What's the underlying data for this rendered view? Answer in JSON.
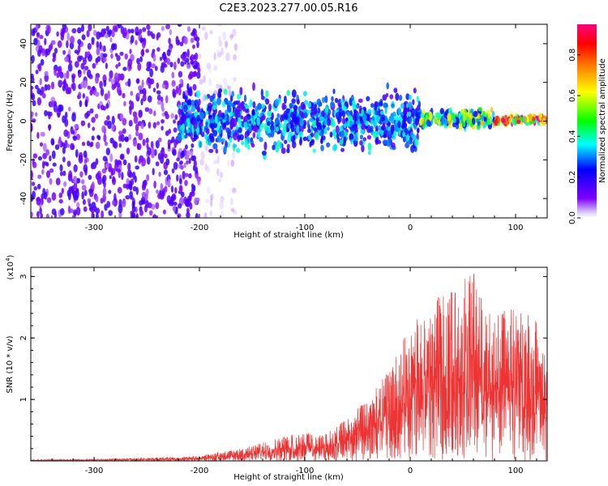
{
  "title": "C2E3.2023.277.00.05.R16",
  "colors": {
    "spectrogram_background": "#ffffff",
    "snr_line": "#ee3333",
    "axis": "#000000"
  },
  "chart_data": [
    {
      "type": "heatmap",
      "title": "C2E3.2023.277.00.05.R16",
      "xlabel": "Height of straight line (km)",
      "ylabel": "Frequency (Hz)",
      "xlim": [
        -360,
        130
      ],
      "ylim": [
        -50,
        50
      ],
      "x_ticks": [
        -300,
        -200,
        -100,
        0,
        100
      ],
      "x_tick_labels": [
        "-300",
        "-200",
        "-100",
        "0",
        "100"
      ],
      "y_ticks": [
        -40,
        -20,
        0,
        20,
        40
      ],
      "y_tick_labels": [
        "-40",
        "-20",
        "0",
        "20",
        "40"
      ],
      "colorbar": {
        "label": "Normalized spectral amplitude",
        "range": [
          0,
          0.95
        ],
        "ticks": [
          0.0,
          0.2,
          0.4,
          0.6,
          0.8
        ],
        "tick_labels": [
          "0.0",
          "0.2",
          "0.4",
          "0.6",
          "0.8"
        ],
        "colormap": [
          "#ffffff",
          "#8000ff",
          "#0000ff",
          "#00ffff",
          "#00ff00",
          "#ffff00",
          "#ff8000",
          "#ff0000",
          "#ff0080"
        ]
      },
      "regions": [
        {
          "x_range": [
            -360,
            -200
          ],
          "freq_spread": [
            -50,
            50
          ],
          "amplitude": 0.12
        },
        {
          "x_range": [
            -200,
            -165
          ],
          "freq_spread": [
            -50,
            50
          ],
          "amplitude": 0.05
        },
        {
          "x_range": [
            -220,
            10
          ],
          "freq_spread": [
            -20,
            20
          ],
          "amplitude": 0.25
        },
        {
          "x_range": [
            10,
            80
          ],
          "freq_spread": [
            -5,
            7
          ],
          "amplitude": 0.45
        },
        {
          "x_range": [
            80,
            130
          ],
          "freq_spread": [
            -2,
            3
          ],
          "amplitude": 0.8
        }
      ],
      "grid": false
    },
    {
      "type": "line",
      "xlabel": "Height of straight line (km)",
      "ylabel": "SNR (10 * v/v)",
      "y_multiplier": "(x10^4)",
      "xlim": [
        -360,
        130
      ],
      "ylim": [
        0,
        3.15
      ],
      "x_ticks": [
        -300,
        -200,
        -100,
        0,
        100
      ],
      "x_tick_labels": [
        "-300",
        "-200",
        "-100",
        "0",
        "100"
      ],
      "y_ticks": [
        1,
        2,
        3
      ],
      "y_tick_labels": [
        "1",
        "2",
        "3"
      ],
      "series": [
        {
          "x": [
            -360,
            -300,
            -250,
            -200,
            -180,
            -160,
            -140,
            -120,
            -100,
            -90,
            -80,
            -60,
            -40,
            -20,
            0,
            20,
            40,
            60,
            80,
            100,
            120,
            130
          ],
          "y": [
            0.02,
            0.03,
            0.05,
            0.08,
            0.15,
            0.2,
            0.3,
            0.4,
            0.5,
            0.4,
            0.45,
            0.7,
            1.0,
            1.5,
            2.2,
            2.6,
            2.8,
            3.1,
            2.4,
            2.5,
            2.3,
            1.6
          ]
        }
      ],
      "grid": false
    }
  ]
}
